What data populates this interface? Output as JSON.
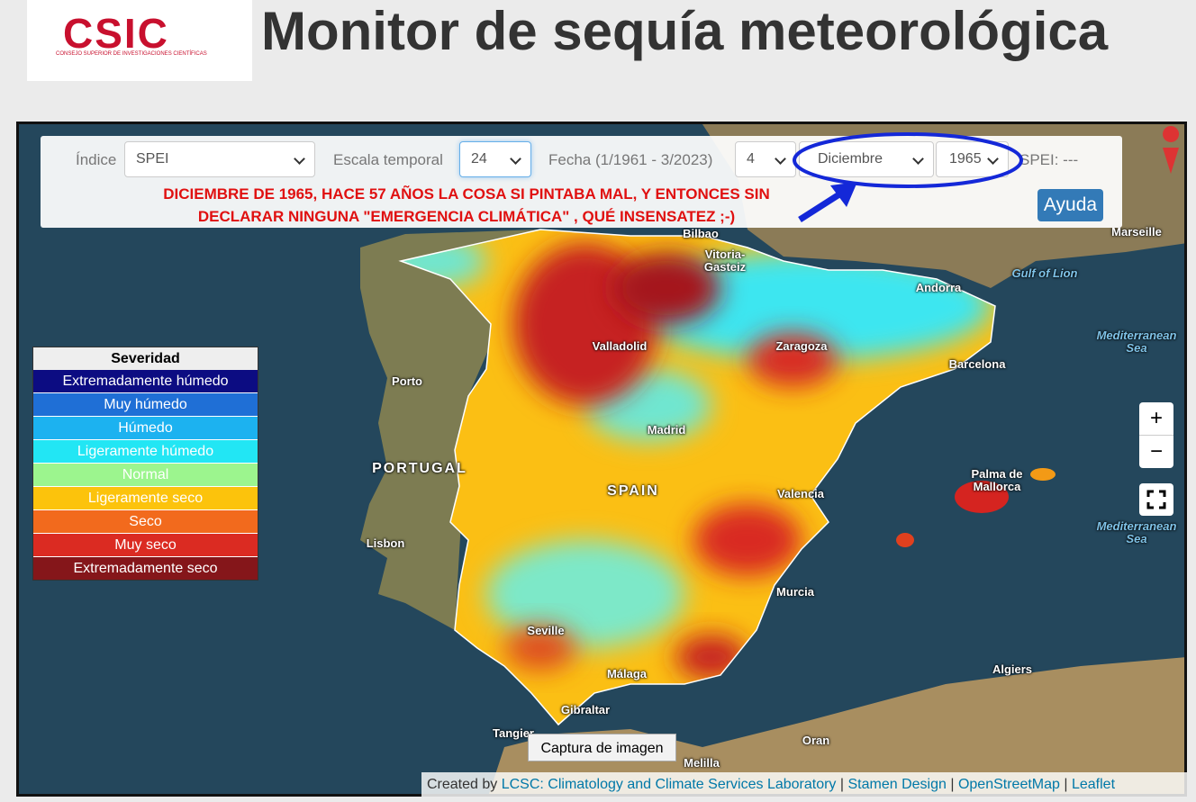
{
  "header": {
    "logo_text": "CSIC",
    "logo_subtitle": "Consejo Superior de Investigaciones Científicas",
    "title": "Monitor de sequía meteorológica"
  },
  "controls": {
    "index_label": "Índice",
    "index_value": "SPEI",
    "scale_label": "Escala temporal",
    "scale_value": "24",
    "date_label": "Fecha (1/1961 - 3/2023)",
    "day_value": "4",
    "month_value": "Diciembre",
    "year_value": "1965",
    "spei_readout": "SPEI: ---",
    "help_button": "Ayuda"
  },
  "annotation": [
    "DICIEMBRE DE 1965, HACE 57 AÑOS LA COSA SI PINTABA MAL, Y ENTONCES SIN",
    "DECLARAR NINGUNA \"EMERGENCIA CLIMÁTICA\" , QUÉ INSENSATEZ ;-)"
  ],
  "legend": {
    "title": "Severidad",
    "items": [
      {
        "label": "Extremadamente húmedo",
        "color": "#0c0c82"
      },
      {
        "label": "Muy húmedo",
        "color": "#1f6fd6"
      },
      {
        "label": "Húmedo",
        "color": "#1cb2f0"
      },
      {
        "label": "Ligeramente húmedo",
        "color": "#22e6f4"
      },
      {
        "label": "Normal",
        "color": "#9cf58e"
      },
      {
        "label": "Ligeramente seco",
        "color": "#fcc30c"
      },
      {
        "label": "Seco",
        "color": "#f26a1d"
      },
      {
        "label": "Muy seco",
        "color": "#db2b22"
      },
      {
        "label": "Extremadamente seco",
        "color": "#85161a"
      }
    ]
  },
  "map_labels": [
    "Bilbao",
    "Vitoria-Gasteiz",
    "Marseille",
    "Gulf of Lion",
    "Andorra",
    "Mediterranean Sea",
    "Valladolid",
    "Zaragoza",
    "Barcelona",
    "Porto",
    "Madrid",
    "PORTUGAL",
    "SPAIN",
    "Palma de Mallorca",
    "Valencia",
    "Lisbon",
    "Mediterranean Sea",
    "Murcia",
    "Seville",
    "Málaga",
    "Algiers",
    "Gibraltar",
    "Tangier",
    "Oran",
    "Melilla"
  ],
  "map_buttons": {
    "zoom_in": "+",
    "zoom_out": "−",
    "capture": "Captura de imagen"
  },
  "attribution": {
    "prefix": "Created by",
    "separator": "|",
    "links": [
      "LCSC: Climatology and Climate Services Laboratory",
      "Stamen Design",
      "OpenStreetMap",
      "Leaflet"
    ]
  }
}
